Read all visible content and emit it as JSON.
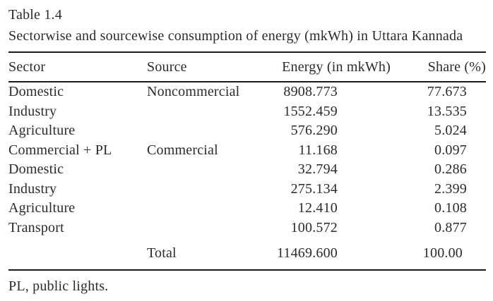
{
  "table_label": "Table 1.4",
  "caption": "Sectorwise and sourcewise consumption of energy (mkWh) in Uttara Kannada",
  "columns": {
    "sector": "Sector",
    "source": "Source",
    "energy": "Energy (in mkWh)",
    "share": "Share (%)"
  },
  "rows": [
    {
      "sector": "Domestic",
      "source": "Noncommercial",
      "energy": "8908.773",
      "share": "77.673"
    },
    {
      "sector": "Industry",
      "source": "",
      "energy": "1552.459",
      "share": "13.535"
    },
    {
      "sector": "Agriculture",
      "source": "",
      "energy": "576.290",
      "share": "5.024"
    },
    {
      "sector": "Commercial + PL",
      "source": "Commercial",
      "energy": "11.168",
      "share": "0.097"
    },
    {
      "sector": "Domestic",
      "source": "",
      "energy": "32.794",
      "share": "0.286"
    },
    {
      "sector": "Industry",
      "source": "",
      "energy": "275.134",
      "share": "2.399"
    },
    {
      "sector": "Agriculture",
      "source": "",
      "energy": "12.410",
      "share": "0.108"
    },
    {
      "sector": "Transport",
      "source": "",
      "energy": "100.572",
      "share": "0.877"
    }
  ],
  "total_row": {
    "sector": "",
    "label": "Total",
    "energy": "11469.600",
    "share": "100.00"
  },
  "footnote": "PL, public lights.",
  "colors": {
    "background": "#ffffff",
    "text": "#2b2b2b",
    "rule": "#1a1a1a"
  }
}
